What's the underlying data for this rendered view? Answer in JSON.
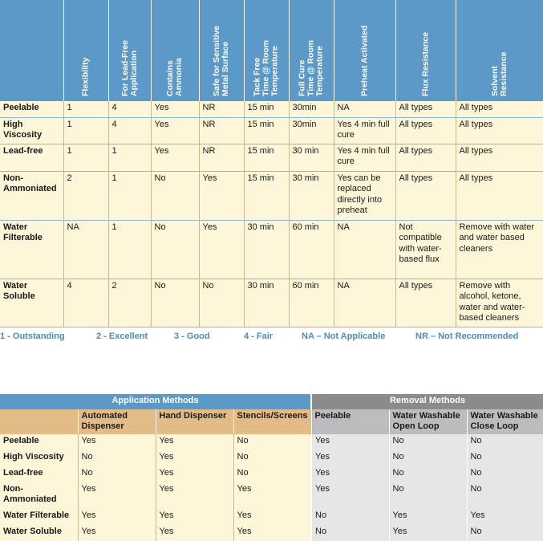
{
  "comparison": {
    "columns": [
      "",
      "Flexibility",
      "For Lead-Free\nApplication",
      "Contains\nAmmonia",
      "Safe for Sensitive\nMetal Surface",
      "Tack Free\nTime @ Room\nTemperature",
      "Full Cure\nTime @ Room\nTemperature",
      "Preheat Activated",
      "Flux Resistance",
      "Solvent\nResistance"
    ],
    "rows": [
      [
        "Peelable",
        "1",
        "4",
        "Yes",
        "NR",
        "15 min",
        "30min",
        "NA",
        "All types",
        "All types"
      ],
      [
        "High Viscosity",
        "1",
        "4",
        "Yes",
        "NR",
        "15 min",
        "30min",
        "Yes 4 min full cure",
        "All types",
        "All types"
      ],
      [
        "Lead-free",
        "1",
        "1",
        "Yes",
        "NR",
        "15 min",
        "30 min",
        "Yes 4 min full cure",
        "All types",
        "All types"
      ],
      [
        "Non-Ammoniated",
        "2",
        "1",
        "No",
        "Yes",
        "15 min",
        "30 min",
        "Yes can be replaced directly into preheat",
        "All types",
        "All types"
      ],
      [
        "Water Filterable",
        "NA",
        "1",
        "No",
        "Yes",
        "30 min",
        "60 min",
        "NA",
        "Not compatible with water-based flux",
        "Remove with water and water based cleaners"
      ],
      [
        "Water Soluble",
        "4",
        "2",
        "No",
        "No",
        "30 min",
        "60 min",
        "NA",
        "All types",
        "Remove with alcohol, ketone, water and water-based cleaners"
      ]
    ]
  },
  "legend": [
    "1 - Outstanding",
    "2 - Excellent",
    "3 - Good",
    "4 - Fair",
    "NA – Not Applicable",
    "NR – Not Recommended"
  ],
  "methods": {
    "application_title": "Application Methods",
    "removal_title": "Removal Methods",
    "application_columns": [
      "Automated Dispenser",
      "Hand Dispenser",
      "Stencils/Screens"
    ],
    "removal_columns": [
      "Peelable",
      "Water Washable Open Loop",
      "Water Washable Close Loop"
    ],
    "rows": [
      [
        "Peelable",
        "Yes",
        "Yes",
        "No",
        "Yes",
        "No",
        "No"
      ],
      [
        "High Viscosity",
        "No",
        "Yes",
        "No",
        "Yes",
        "No",
        "No"
      ],
      [
        "Lead-free",
        "No",
        "Yes",
        "No",
        "Yes",
        "No",
        "No"
      ],
      [
        "Non-Ammoniated",
        "Yes",
        "Yes",
        "Yes",
        "Yes",
        "No",
        "No"
      ],
      [
        "Water Filterable",
        "Yes",
        "Yes",
        "Yes",
        "No",
        "Yes",
        "Yes"
      ],
      [
        "Water Soluble",
        "Yes",
        "Yes",
        "Yes",
        "No",
        "Yes",
        "No"
      ]
    ]
  },
  "colors": {
    "header_blue": "#5b9ac8",
    "cream": "#fdf6d8",
    "tan": "#e3bb87",
    "removal_grey": "#8a8b8d",
    "legend_blue": "#4a8cc4"
  }
}
